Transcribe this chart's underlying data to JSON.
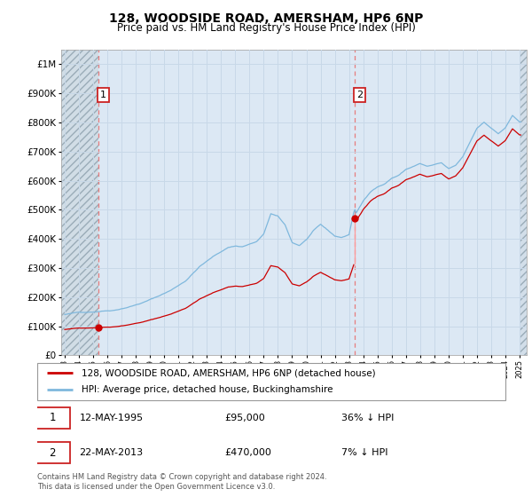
{
  "title1": "128, WOODSIDE ROAD, AMERSHAM, HP6 6NP",
  "title2": "Price paid vs. HM Land Registry's House Price Index (HPI)",
  "ytick_vals": [
    0,
    100000,
    200000,
    300000,
    400000,
    500000,
    600000,
    700000,
    800000,
    900000,
    1000000
  ],
  "ylim": [
    0,
    1050000
  ],
  "xlim_start": 1992.75,
  "xlim_end": 2025.5,
  "xticks": [
    1993,
    1994,
    1995,
    1996,
    1997,
    1998,
    1999,
    2000,
    2001,
    2002,
    2003,
    2004,
    2005,
    2006,
    2007,
    2008,
    2009,
    2010,
    2011,
    2012,
    2013,
    2014,
    2015,
    2016,
    2017,
    2018,
    2019,
    2020,
    2021,
    2022,
    2023,
    2024,
    2025
  ],
  "sale1_x": 1995.36,
  "sale1_y": 95000,
  "sale2_x": 2013.39,
  "sale2_y": 470000,
  "sale1_label": "1",
  "sale2_label": "2",
  "legend_line1": "128, WOODSIDE ROAD, AMERSHAM, HP6 6NP (detached house)",
  "legend_line2": "HPI: Average price, detached house, Buckinghamshire",
  "footer": "Contains HM Land Registry data © Crown copyright and database right 2024.\nThis data is licensed under the Open Government Licence v3.0.",
  "plot_bg": "#dce8f4",
  "hatch_color": "#c0ccd8",
  "sale_color": "#cc0000",
  "hpi_line_color": "#7fb8dd",
  "vline_color": "#e87070",
  "grid_color": "#c8d8e8",
  "box_edge_color": "#cc2222"
}
